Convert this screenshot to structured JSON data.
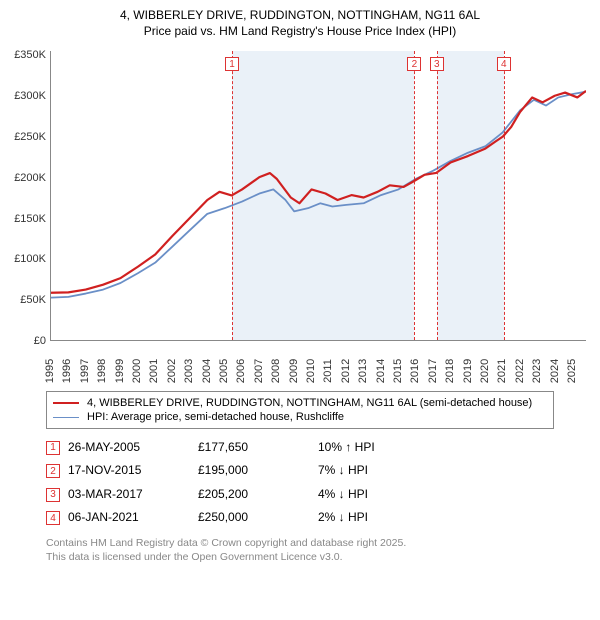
{
  "title": {
    "line1": "4, WIBBERLEY DRIVE, RUDDINGTON, NOTTINGHAM, NG11 6AL",
    "line2": "Price paid vs. HM Land Registry's House Price Index (HPI)",
    "fontsize": 12
  },
  "chart": {
    "type": "line",
    "background_color": "#ffffff",
    "shade_color": "#e6eef7",
    "grid_color": "#d33",
    "x_start": 1995,
    "x_end": 2025.8,
    "ylim": [
      0,
      355000
    ],
    "ytick_step": 50000,
    "ytick_labels": [
      "£0",
      "£50K",
      "£100K",
      "£150K",
      "£200K",
      "£250K",
      "£300K",
      "£350K"
    ],
    "xtick_years": [
      1995,
      1996,
      1997,
      1998,
      1999,
      2000,
      2001,
      2002,
      2003,
      2004,
      2005,
      2006,
      2007,
      2008,
      2009,
      2010,
      2011,
      2012,
      2013,
      2014,
      2015,
      2016,
      2017,
      2018,
      2019,
      2020,
      2021,
      2022,
      2023,
      2024,
      2025
    ],
    "shade_ranges": [
      {
        "start": 2005.4,
        "end": 2015.88
      },
      {
        "start": 2017.17,
        "end": 2021.02
      }
    ],
    "markers": [
      {
        "id": "1",
        "year": 2005.4
      },
      {
        "id": "2",
        "year": 2015.88
      },
      {
        "id": "3",
        "year": 2017.17
      },
      {
        "id": "4",
        "year": 2021.02
      }
    ],
    "series": [
      {
        "label": "4, WIBBERLEY DRIVE, RUDDINGTON, NOTTINGHAM, NG11 6AL (semi-detached house)",
        "color": "#d02020",
        "width": 2.2,
        "points": [
          [
            1995,
            58000
          ],
          [
            1996,
            58500
          ],
          [
            1997,
            62000
          ],
          [
            1998,
            68000
          ],
          [
            1999,
            76000
          ],
          [
            2000,
            90000
          ],
          [
            2001,
            105000
          ],
          [
            2002,
            128000
          ],
          [
            2003,
            150000
          ],
          [
            2004,
            172000
          ],
          [
            2004.7,
            182000
          ],
          [
            2005.4,
            177650
          ],
          [
            2006,
            185000
          ],
          [
            2007,
            200000
          ],
          [
            2007.6,
            205000
          ],
          [
            2008,
            198000
          ],
          [
            2008.8,
            175000
          ],
          [
            2009.3,
            168000
          ],
          [
            2010,
            185000
          ],
          [
            2010.8,
            180000
          ],
          [
            2011.5,
            172000
          ],
          [
            2012.3,
            178000
          ],
          [
            2013,
            175000
          ],
          [
            2013.8,
            182000
          ],
          [
            2014.5,
            190000
          ],
          [
            2015.3,
            188000
          ],
          [
            2015.88,
            195000
          ],
          [
            2016.5,
            203000
          ],
          [
            2017.17,
            205200
          ],
          [
            2018,
            218000
          ],
          [
            2019,
            226000
          ],
          [
            2020,
            235000
          ],
          [
            2020.6,
            244000
          ],
          [
            2021.02,
            250000
          ],
          [
            2021.5,
            262000
          ],
          [
            2022,
            280000
          ],
          [
            2022.7,
            298000
          ],
          [
            2023.3,
            292000
          ],
          [
            2024,
            300000
          ],
          [
            2024.6,
            304000
          ],
          [
            2025.3,
            298000
          ],
          [
            2025.8,
            306000
          ]
        ]
      },
      {
        "label": "HPI: Average price, semi-detached house, Rushcliffe",
        "color": "#6a8fc7",
        "width": 1.8,
        "points": [
          [
            1995,
            52000
          ],
          [
            1996,
            53000
          ],
          [
            1997,
            57000
          ],
          [
            1998,
            62000
          ],
          [
            1999,
            70000
          ],
          [
            2000,
            82000
          ],
          [
            2001,
            95000
          ],
          [
            2002,
            115000
          ],
          [
            2003,
            135000
          ],
          [
            2004,
            155000
          ],
          [
            2005,
            162000
          ],
          [
            2006,
            170000
          ],
          [
            2007,
            180000
          ],
          [
            2007.8,
            185000
          ],
          [
            2008.5,
            172000
          ],
          [
            2009,
            158000
          ],
          [
            2009.8,
            162000
          ],
          [
            2010.5,
            168000
          ],
          [
            2011.2,
            164000
          ],
          [
            2012,
            166000
          ],
          [
            2013,
            168000
          ],
          [
            2014,
            178000
          ],
          [
            2015,
            185000
          ],
          [
            2016,
            198000
          ],
          [
            2017,
            208000
          ],
          [
            2018,
            220000
          ],
          [
            2019,
            230000
          ],
          [
            2020,
            238000
          ],
          [
            2021,
            255000
          ],
          [
            2022,
            282000
          ],
          [
            2022.8,
            295000
          ],
          [
            2023.5,
            288000
          ],
          [
            2024.2,
            298000
          ],
          [
            2025,
            302000
          ],
          [
            2025.8,
            305000
          ]
        ]
      }
    ]
  },
  "transactions": [
    {
      "id": "1",
      "date": "26-MAY-2005",
      "price": "£177,650",
      "delta": "10% ↑ HPI"
    },
    {
      "id": "2",
      "date": "17-NOV-2015",
      "price": "£195,000",
      "delta": "7% ↓ HPI"
    },
    {
      "id": "3",
      "date": "03-MAR-2017",
      "price": "£205,200",
      "delta": "4% ↓ HPI"
    },
    {
      "id": "4",
      "date": "06-JAN-2021",
      "price": "£250,000",
      "delta": "2% ↓ HPI"
    }
  ],
  "footer": {
    "line1": "Contains HM Land Registry data © Crown copyright and database right 2025.",
    "line2": "This data is licensed under the Open Government Licence v3.0."
  }
}
